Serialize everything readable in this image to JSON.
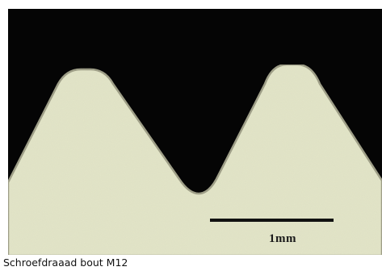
{
  "image": {
    "subject": "microscope-cross-section-of-screw-thread",
    "colors": {
      "background": "#050505",
      "material": "#e3e5c8",
      "material_shade": "#d6d9b8",
      "edge": "#9a9a82",
      "frame": "#ffffff",
      "scale_bar": "#111111"
    }
  },
  "scale_bar": {
    "label": "1mm"
  },
  "caption": {
    "text": "Schroefdraaad bout  M12"
  }
}
